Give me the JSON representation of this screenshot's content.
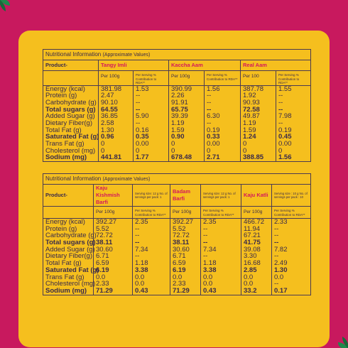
{
  "colors": {
    "background": "#c8195e",
    "card": "#f5bf1e",
    "accent": "#d4185c",
    "text": "#3a2a4a"
  },
  "icons": [
    "leaf-icon"
  ],
  "table1": {
    "title": "Nutritional Information",
    "title_note": "(Approximate Values)",
    "product_label": "Product-",
    "products": [
      "Tangy Imli",
      "Kaccha Aam",
      "Real Aam"
    ],
    "sub_headers": [
      {
        "per": "Per 100g",
        "rda": "Per Serving % Contribution to RDA**"
      },
      {
        "per": "Per 100g",
        "rda": "Per Serving % Contribution to RDA**"
      },
      {
        "per": "Per 100",
        "rda": "Per Serving % Contribution to RDA**"
      }
    ],
    "nutrients": [
      "Energy (kcal)",
      "Protein (g)",
      "Carbohydrate (g)",
      "Total sugars (g)",
      "Added Sugar (g)",
      "Dietary Fiber(g)",
      "Total Fat (g)",
      "Saturated Fat (g)",
      "Trans Fat (g)",
      "Cholesterol (mg)",
      "Sodium (mg)"
    ],
    "bold_rows": [
      3,
      7,
      10
    ],
    "columns": [
      [
        "381.98",
        "2.47",
        "90.10",
        "64.55",
        "36.85",
        "2.58",
        "1.30",
        "0.96",
        "0",
        "0",
        "441.81"
      ],
      [
        "1.53",
        "--",
        "--",
        "--",
        "5.90",
        "--",
        "0.16",
        "0.35",
        "0.00",
        "0",
        "1.77"
      ],
      [
        "390.99",
        "2.26",
        "91.91",
        "65.75",
        "39.39",
        "1.19",
        "1.59",
        "0.90",
        "0",
        "0",
        "678.48"
      ],
      [
        "1.56",
        "--",
        "--",
        "--",
        "6.30",
        "--",
        "0.19",
        "0.33",
        "0.00",
        "0",
        "2.71"
      ],
      [
        "387.78",
        "1.92",
        "90.93",
        "72.58",
        "49.87",
        "1.19",
        "1.59",
        "1.24",
        "0",
        "0",
        "388.85"
      ],
      [
        "1.55",
        "--",
        "--",
        "--",
        "7.98",
        "--",
        "0.19",
        "0.45",
        "0.00",
        "0",
        "1.56"
      ]
    ]
  },
  "table2": {
    "title": "Nutritional Information",
    "title_note": "(Approximate Values)",
    "product_label": "Product-",
    "products": [
      {
        "name": "Kaju Kishmish Barfi",
        "serving": "Serving size: 12 g No. of servings per pack: 1"
      },
      {
        "name": "Badam Barfi",
        "serving": "Serving size: 12 g No. of servings per pack: 1"
      },
      {
        "name": "Kaju Katli",
        "serving": "Serving size : 10 g No. of servings per pack : 10"
      }
    ],
    "sub_headers": [
      {
        "per": "Per 100g",
        "rda": "Per Serving % Contribution to RDA**"
      },
      {
        "per": "Per 100g",
        "rda": "Per Serving % Contribution to RDA**"
      },
      {
        "per": "Per 100g",
        "rda": "Per Serving % Contribution to RDA**"
      }
    ],
    "nutrients": [
      "Energy (kcal)",
      "Protein (g)",
      "Carbohydrate (g)",
      "Total sugars (g)",
      "Added Sugar (g)",
      "Dietary Fiber(g)",
      "Total Fat (g)",
      "Saturated Fat (g)",
      "Trans Fat (g)",
      "Cholesterol (mg)",
      "Sodium (mg)"
    ],
    "bold_rows": [
      3,
      7,
      10
    ],
    "columns": [
      [
        "392.27",
        "5.52",
        "72.72",
        "38.11",
        "30.60",
        "6.71",
        "6.59",
        "6.19",
        "0.0",
        "2.33",
        "71.29"
      ],
      [
        "2.35",
        "--",
        "--",
        "--",
        "7.34",
        "--",
        "1.18",
        "3.38",
        "0.0",
        "0.0",
        "0.43"
      ],
      [
        "392.27",
        "5.52",
        "72.72",
        "38.11",
        "30.60",
        "6.71",
        "6.59",
        "6.19",
        "0.0",
        "2.33",
        "71.29"
      ],
      [
        "2.35",
        "--",
        "--",
        "--",
        "7.34",
        "--",
        "1.18",
        "3.38",
        "0.0",
        "0.0",
        "0.43"
      ],
      [
        "466.72",
        "11.94",
        "67.21",
        "41.75",
        "39.08",
        "3.30",
        "16.68",
        "2.85",
        "0.0",
        "0.0",
        "33.2"
      ],
      [
        "2.33",
        "--",
        "--",
        "--",
        "7.82",
        "--",
        "2.49",
        "1.30",
        "0.0",
        "--",
        "0.17"
      ]
    ],
    "bold_cells": [
      [
        0,
        10
      ],
      [
        1,
        10
      ],
      [
        2,
        10
      ],
      [
        3,
        10
      ]
    ]
  }
}
